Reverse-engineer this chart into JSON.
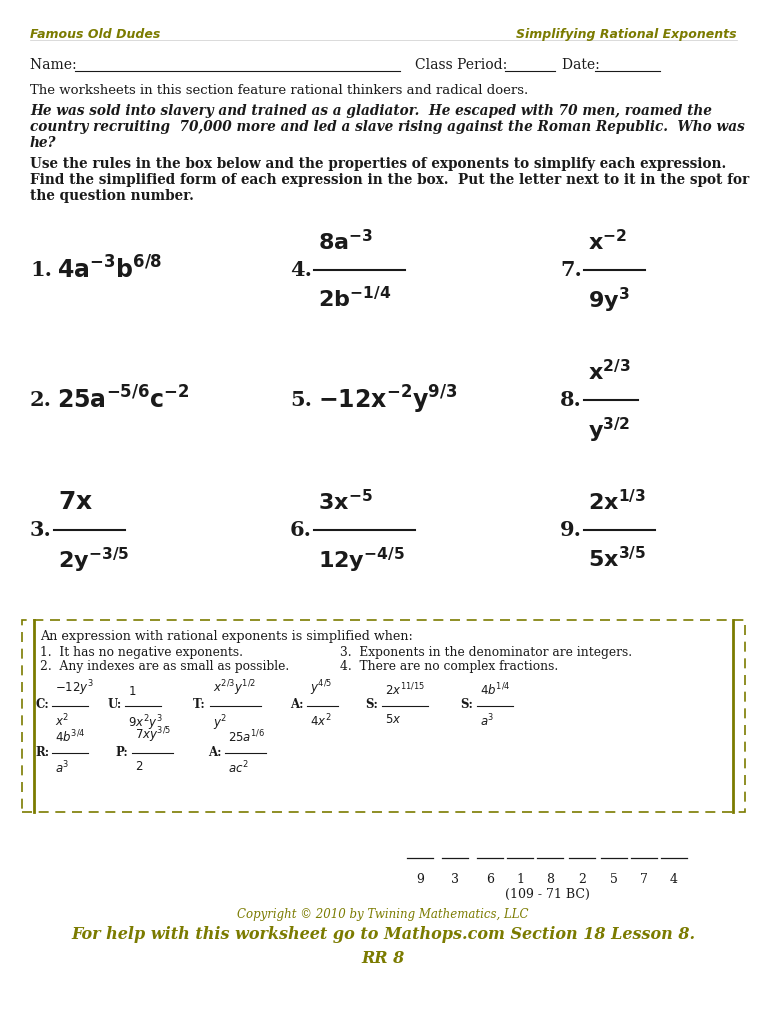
{
  "bg_color": "#ffffff",
  "olive_color": "#7b7b00",
  "dark_color": "#1a1a1a",
  "header_left": "Famous Old Dudes",
  "header_right": "Simplifying Rational Exponents",
  "copyright": "Copyright © 2010 by Twining Mathematics, LLC",
  "footer": "For help with this worksheet go to Mathops.com Section 18 Lesson 8.",
  "footer2": "RR 8",
  "bc_note": "(109 - 71 BC)",
  "answer_nums": [
    "9",
    "3",
    "6",
    "1",
    "8",
    "2",
    "5",
    "7",
    "4"
  ]
}
